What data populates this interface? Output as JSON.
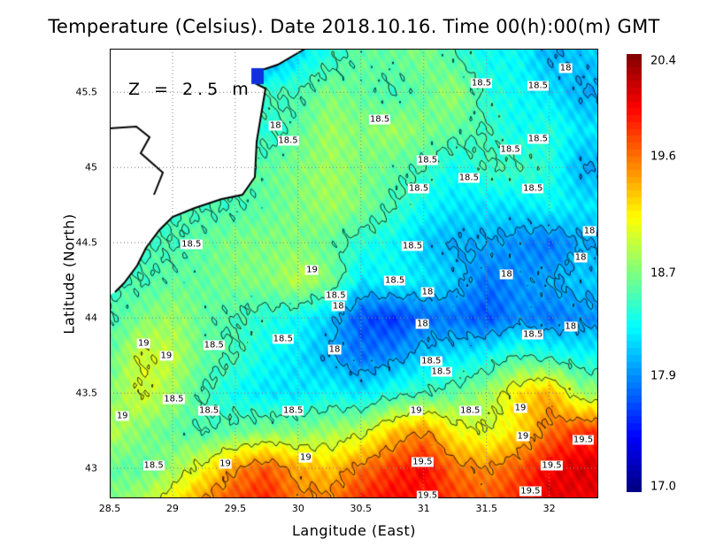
{
  "title": "Temperature (Celsius). Date 2018.10.16. Time 00(h):00(m) GMT",
  "depth_label": "Z = 2.5 m",
  "chart_data": {
    "type": "heatmap",
    "title": "Temperature (Celsius). Date 2018.10.16. Time 00(h):00(m) GMT",
    "xlabel": "Langitude (East)",
    "ylabel": "Latitude (North)",
    "xlim": [
      28.5,
      32.39
    ],
    "ylim": [
      42.8,
      45.79
    ],
    "xticks": [
      "28.5",
      "29",
      "29.5",
      "30",
      "30.5",
      "31",
      "31.5",
      "32"
    ],
    "xtick_values": [
      28.5,
      29,
      29.5,
      30,
      30.5,
      31,
      31.5,
      32
    ],
    "yticks": [
      "43",
      "43.5",
      "44",
      "44.5",
      "45",
      "45.5"
    ],
    "ytick_values": [
      43,
      43.5,
      44,
      44.5,
      45,
      45.5
    ],
    "grid": true,
    "colormap": "jet",
    "color_range": [
      17.0,
      20.4
    ],
    "colorbar_ticks": [
      "20.4",
      "19.6",
      "18.7",
      "17.9",
      "17.0"
    ],
    "colorbar_tick_values": [
      20.4,
      19.6,
      18.7,
      17.9,
      17.0
    ],
    "contour_levels": [
      18,
      18.5,
      19,
      19.5
    ],
    "land_color": "#ffffff",
    "grid_lon": [
      28.5,
      28.75,
      29,
      29.25,
      29.5,
      29.75,
      30,
      30.25,
      30.5,
      30.75,
      31,
      31.25,
      31.5,
      31.75,
      32,
      32.25
    ],
    "grid_lat": [
      45.75,
      45.5,
      45.25,
      45.0,
      44.75,
      44.5,
      44.25,
      44.0,
      43.75,
      43.5,
      43.25,
      43.0,
      42.75
    ],
    "values": [
      [
        null,
        null,
        null,
        null,
        null,
        17.8,
        18.2,
        18.4,
        18.6,
        18.6,
        18.7,
        18.5,
        18.3,
        18.3,
        18.0,
        18.1
      ],
      [
        null,
        null,
        null,
        null,
        null,
        null,
        18.5,
        18.7,
        18.6,
        18.5,
        18.6,
        18.8,
        18.4,
        18.3,
        18.2,
        18.0
      ],
      [
        null,
        null,
        null,
        null,
        null,
        18.4,
        18.6,
        18.8,
        18.7,
        18.8,
        18.7,
        18.6,
        18.5,
        18.3,
        18.4,
        18.2
      ],
      [
        null,
        null,
        null,
        null,
        null,
        18.6,
        18.7,
        18.8,
        18.7,
        18.6,
        18.5,
        18.3,
        18.5,
        18.5,
        18.4,
        18.0
      ],
      [
        null,
        null,
        null,
        null,
        18.5,
        18.6,
        18.7,
        18.8,
        18.7,
        18.5,
        18.3,
        18.2,
        18.2,
        18.2,
        18.3,
        18.2
      ],
      [
        null,
        null,
        18.5,
        18.6,
        18.7,
        18.7,
        18.7,
        18.6,
        18.4,
        18.3,
        18.1,
        18.0,
        18.0,
        17.9,
        17.8,
        18.0
      ],
      [
        null,
        18.5,
        18.6,
        18.6,
        18.7,
        18.7,
        18.9,
        18.7,
        18.2,
        18.3,
        18.2,
        18.1,
        17.8,
        17.9,
        18.0,
        18.1
      ],
      [
        18.5,
        18.7,
        18.8,
        18.6,
        18.5,
        18.4,
        18.3,
        18.1,
        17.7,
        17.6,
        17.8,
        17.8,
        17.7,
        17.9,
        17.8,
        17.9
      ],
      [
        18.6,
        19.0,
        18.9,
        18.6,
        18.5,
        18.3,
        18.2,
        18.0,
        17.8,
        17.9,
        18.1,
        18.2,
        18.3,
        18.5,
        18.4,
        18.3
      ],
      [
        18.7,
        19.0,
        18.8,
        18.5,
        18.3,
        18.2,
        18.2,
        18.3,
        18.2,
        18.4,
        18.5,
        18.6,
        18.8,
        19.2,
        19.4,
        18.8
      ],
      [
        18.9,
        18.7,
        18.6,
        18.5,
        18.6,
        18.7,
        18.7,
        18.8,
        18.9,
        19.3,
        19.5,
        19.1,
        19.0,
        19.2,
        19.6,
        19.8
      ],
      [
        18.6,
        18.6,
        18.8,
        19.1,
        19.5,
        19.7,
        19.4,
        19.3,
        19.6,
        19.8,
        20.0,
        19.6,
        19.5,
        19.7,
        20.0,
        20.1
      ],
      [
        18.7,
        18.9,
        19.2,
        19.6,
        19.8,
        19.9,
        19.6,
        19.6,
        19.9,
        20.0,
        19.9,
        19.8,
        19.7,
        19.9,
        20.1,
        20.0
      ]
    ],
    "contour_labels": [
      {
        "text": "18",
        "lon": 32.13,
        "lat": 45.66
      },
      {
        "text": "18.5",
        "lon": 31.46,
        "lat": 45.56
      },
      {
        "text": "18.5",
        "lon": 31.91,
        "lat": 45.54
      },
      {
        "text": "18",
        "lon": 29.82,
        "lat": 45.28
      },
      {
        "text": "18.5",
        "lon": 29.92,
        "lat": 45.18
      },
      {
        "text": "18.5",
        "lon": 30.65,
        "lat": 45.32
      },
      {
        "text": "18.5",
        "lon": 31.91,
        "lat": 45.19
      },
      {
        "text": "18.5",
        "lon": 31.69,
        "lat": 45.12
      },
      {
        "text": "18.5",
        "lon": 31.03,
        "lat": 45.05
      },
      {
        "text": "18.5",
        "lon": 31.36,
        "lat": 44.93
      },
      {
        "text": "18.5",
        "lon": 30.96,
        "lat": 44.86
      },
      {
        "text": "18.5",
        "lon": 31.87,
        "lat": 44.86
      },
      {
        "text": "18.5",
        "lon": 29.15,
        "lat": 44.49
      },
      {
        "text": "18.5",
        "lon": 30.91,
        "lat": 44.48
      },
      {
        "text": "18",
        "lon": 32.32,
        "lat": 44.58
      },
      {
        "text": "18",
        "lon": 32.25,
        "lat": 44.4
      },
      {
        "text": "19",
        "lon": 30.11,
        "lat": 44.32
      },
      {
        "text": "18.5",
        "lon": 30.77,
        "lat": 44.25
      },
      {
        "text": "18",
        "lon": 31.66,
        "lat": 44.29
      },
      {
        "text": "18.5",
        "lon": 30.3,
        "lat": 44.15
      },
      {
        "text": "18",
        "lon": 31.03,
        "lat": 44.17
      },
      {
        "text": "18",
        "lon": 30.32,
        "lat": 44.08
      },
      {
        "text": "18",
        "lon": 30.99,
        "lat": 43.96
      },
      {
        "text": "18",
        "lon": 32.17,
        "lat": 43.94
      },
      {
        "text": "18.5",
        "lon": 31.87,
        "lat": 43.89
      },
      {
        "text": "18.5",
        "lon": 29.88,
        "lat": 43.86
      },
      {
        "text": "18",
        "lon": 30.29,
        "lat": 43.79
      },
      {
        "text": "19",
        "lon": 28.77,
        "lat": 43.83
      },
      {
        "text": "18.5",
        "lon": 29.33,
        "lat": 43.82
      },
      {
        "text": "19",
        "lon": 28.95,
        "lat": 43.75
      },
      {
        "text": "18.5",
        "lon": 31.06,
        "lat": 43.71
      },
      {
        "text": "18.5",
        "lon": 31.14,
        "lat": 43.64
      },
      {
        "text": "18.5",
        "lon": 29.01,
        "lat": 43.46
      },
      {
        "text": "18.5",
        "lon": 29.29,
        "lat": 43.38
      },
      {
        "text": "18.5",
        "lon": 29.96,
        "lat": 43.38
      },
      {
        "text": "19",
        "lon": 30.94,
        "lat": 43.38
      },
      {
        "text": "18.5",
        "lon": 31.37,
        "lat": 43.38
      },
      {
        "text": "19",
        "lon": 31.77,
        "lat": 43.4
      },
      {
        "text": "19",
        "lon": 28.6,
        "lat": 43.35
      },
      {
        "text": "19",
        "lon": 31.79,
        "lat": 43.21
      },
      {
        "text": "19.5",
        "lon": 32.27,
        "lat": 43.19
      },
      {
        "text": "19",
        "lon": 30.06,
        "lat": 43.07
      },
      {
        "text": "19",
        "lon": 29.42,
        "lat": 43.03
      },
      {
        "text": "18.5",
        "lon": 28.85,
        "lat": 43.02
      },
      {
        "text": "19.5",
        "lon": 30.99,
        "lat": 43.04
      },
      {
        "text": "19.5",
        "lon": 32.02,
        "lat": 43.02
      },
      {
        "text": "19.5",
        "lon": 31.85,
        "lat": 42.85
      },
      {
        "text": "19.5",
        "lon": 31.03,
        "lat": 42.82
      }
    ]
  }
}
